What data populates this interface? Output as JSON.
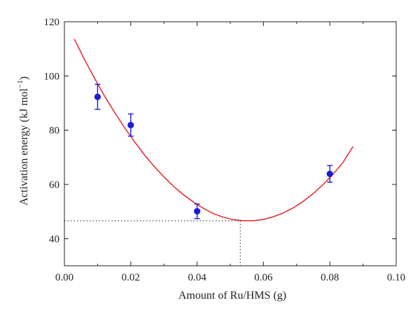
{
  "chart_data": {
    "type": "scatter",
    "xlabel": "Amount of Ru/HMS (g)",
    "ylabel": {
      "main": "Activation energy (kJ mol",
      "sup": "−1",
      "close": ")"
    },
    "xlim": [
      0.0,
      0.1
    ],
    "ylim": [
      30,
      120
    ],
    "xticks": [
      0.0,
      0.02,
      0.04,
      0.06,
      0.08,
      0.1
    ],
    "xtick_labels": [
      "0.00",
      "0.02",
      "0.04",
      "0.06",
      "0.08",
      "0.10"
    ],
    "yticks": [
      40,
      60,
      80,
      100,
      120
    ],
    "ytick_labels": [
      "40",
      "60",
      "80",
      "100",
      "120"
    ],
    "grid": false,
    "series": [
      {
        "type": "scatter",
        "color": "#1a1adb",
        "points": [
          {
            "x": 0.01,
            "y": 92.3,
            "err": 4.6
          },
          {
            "x": 0.02,
            "y": 81.9,
            "err": 4.1
          },
          {
            "x": 0.04,
            "y": 50.1,
            "err": 2.7
          },
          {
            "x": 0.08,
            "y": 63.9,
            "err": 3.1
          }
        ]
      },
      {
        "type": "line",
        "color": "#e8252b",
        "x": [
          0.003,
          0.006,
          0.009,
          0.012,
          0.015,
          0.018,
          0.021,
          0.024,
          0.027,
          0.03,
          0.033,
          0.036,
          0.039,
          0.042,
          0.045,
          0.048,
          0.051,
          0.054,
          0.057,
          0.06,
          0.063,
          0.066,
          0.069,
          0.072,
          0.075,
          0.078,
          0.081,
          0.084,
          0.087
        ],
        "y": [
          113.6,
          106.2,
          99.3,
          92.8,
          86.8,
          81.2,
          76.0,
          71.1,
          66.7,
          62.8,
          59.2,
          56.1,
          53.4,
          51.1,
          49.2,
          47.9,
          47.0,
          46.6,
          46.6,
          47.1,
          48.1,
          49.5,
          51.4,
          53.8,
          56.6,
          60.0,
          63.8,
          68.2,
          74.0
        ]
      }
    ],
    "minimum_marker": {
      "x": 0.053,
      "y": 46.6,
      "style": "dotted"
    }
  }
}
